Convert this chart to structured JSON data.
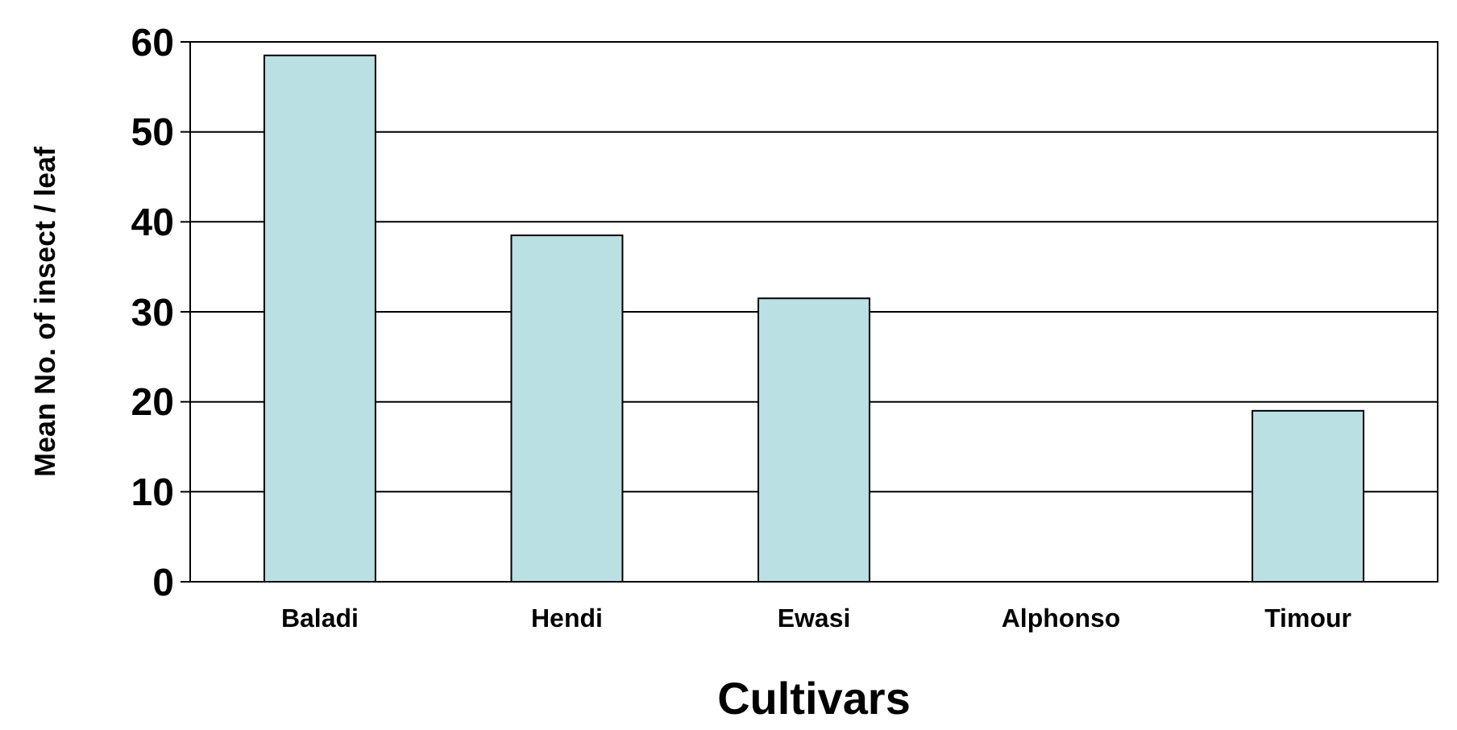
{
  "chart_data": {
    "type": "bar",
    "xlabel": "Cultivars",
    "ylabel": "Mean No. of insect / leaf",
    "categories": [
      "Baladi",
      "Hendi",
      "Ewasi",
      "Alphonso",
      "Timour"
    ],
    "values": [
      58.5,
      38.5,
      31.5,
      0,
      19
    ],
    "color": "#bbe0e3",
    "ylim": [
      0,
      60
    ],
    "yticks": [
      0,
      10,
      20,
      30,
      40,
      50,
      60
    ],
    "grid": "y"
  }
}
